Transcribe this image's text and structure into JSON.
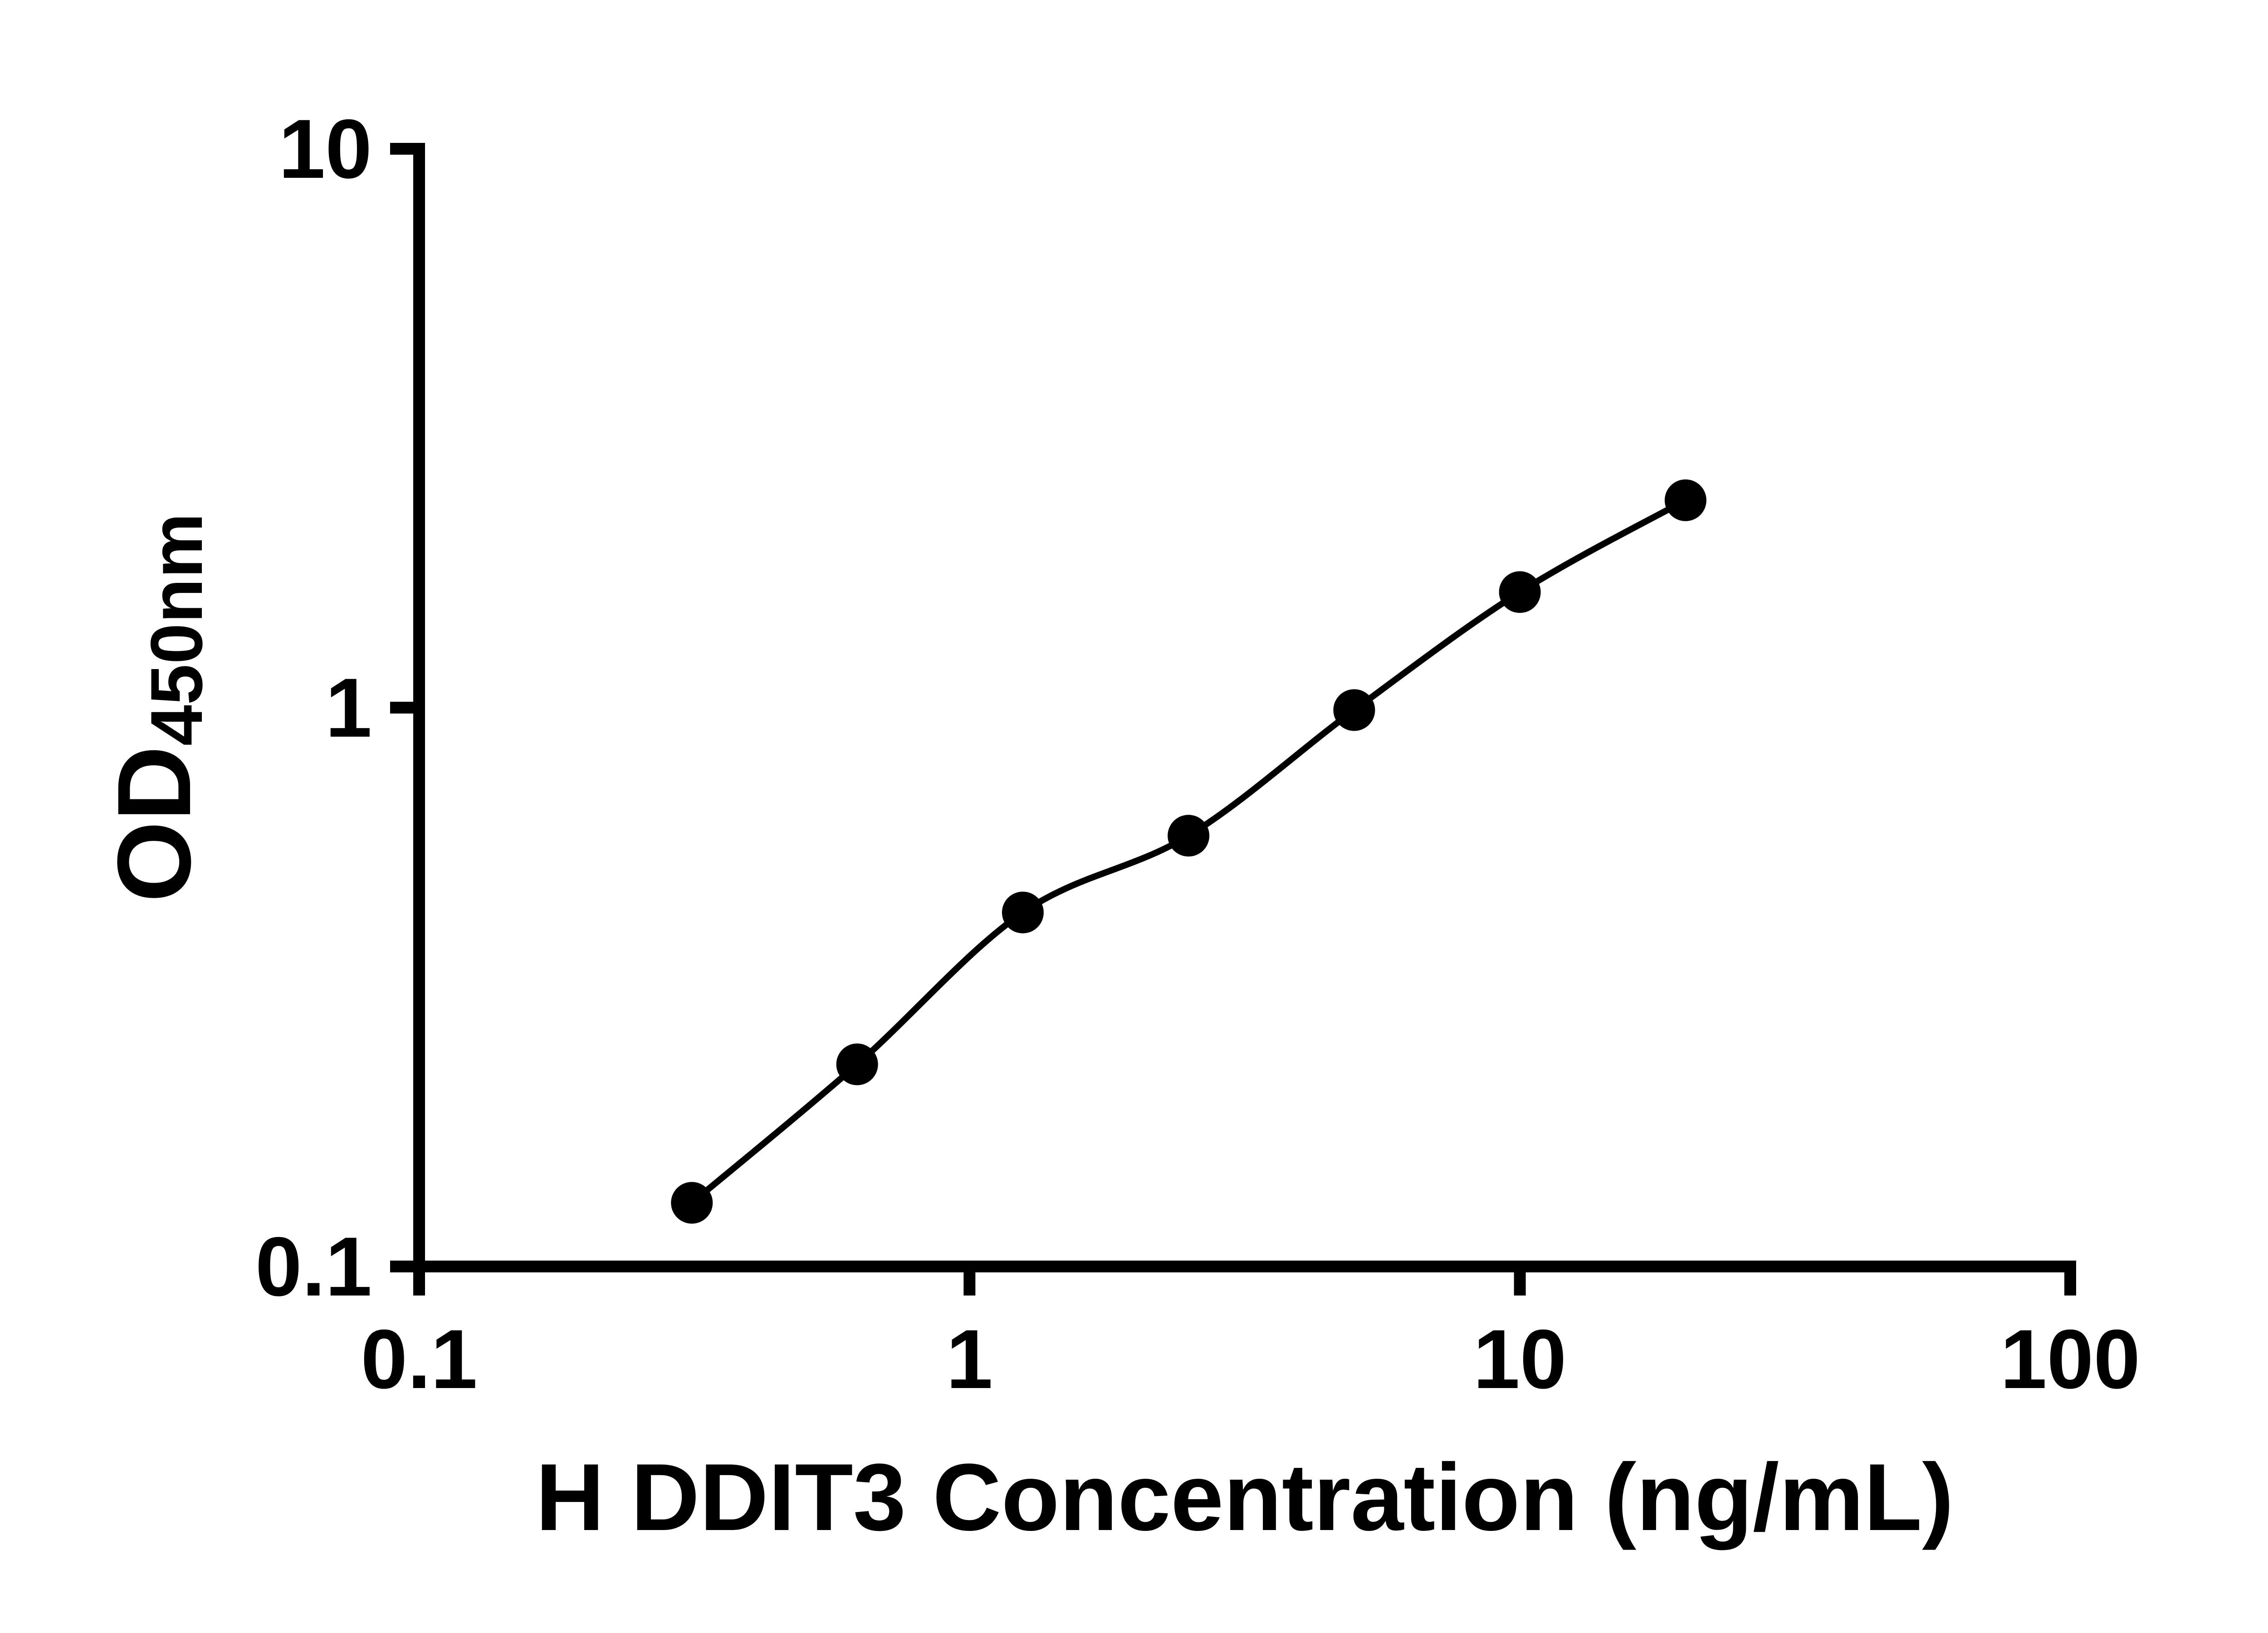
{
  "figure": {
    "background": "#ffffff",
    "ink_color": "#000000"
  },
  "chart_data": {
    "type": "scatter",
    "title": "",
    "xlabel": "H DDIT3 Concentration (ng/mL)",
    "ylabel": "OD450nm",
    "ylabel_main": "OD",
    "ylabel_sub": "450nm",
    "x_scale": "log10",
    "y_scale": "log10",
    "xlim": [
      0.1,
      100
    ],
    "ylim": [
      0.1,
      10
    ],
    "grid": false,
    "legend": "none",
    "x_ticks": [
      {
        "value": 0.1,
        "label": "0.1"
      },
      {
        "value": 1,
        "label": "1"
      },
      {
        "value": 10,
        "label": "10"
      },
      {
        "value": 100,
        "label": "100"
      }
    ],
    "y_ticks": [
      {
        "value": 0.1,
        "label": "0.1"
      },
      {
        "value": 1,
        "label": "1"
      },
      {
        "value": 10,
        "label": "10"
      }
    ],
    "series": [
      {
        "marker": "circle",
        "marker_color": "#000000",
        "line_color": "#000000",
        "x": [
          0.313,
          0.625,
          1.25,
          2.5,
          5,
          10,
          20
        ],
        "y": [
          0.13,
          0.23,
          0.43,
          0.59,
          0.99,
          1.61,
          2.35
        ]
      }
    ]
  }
}
